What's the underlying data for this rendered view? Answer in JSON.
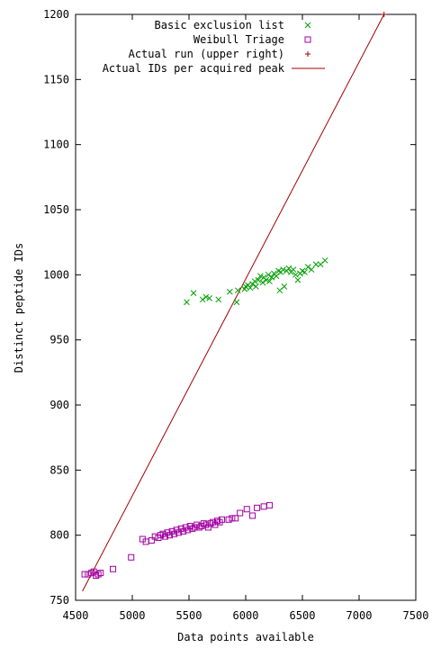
{
  "chart_data": {
    "type": "scatter",
    "xlabel": "Data points available",
    "ylabel": "Distinct peptide IDs",
    "xlim": [
      4500,
      7500
    ],
    "ylim": [
      750,
      1200
    ],
    "xticks": [
      4500,
      5000,
      5500,
      6000,
      6500,
      7000,
      7500
    ],
    "yticks": [
      750,
      800,
      850,
      900,
      950,
      1000,
      1050,
      1100,
      1150,
      1200
    ],
    "grid": false,
    "legend_position": "top-right",
    "series": [
      {
        "name": "Basic exclusion list",
        "marker": "x",
        "color": "#00a000",
        "points": [
          [
            5480,
            979
          ],
          [
            5540,
            986
          ],
          [
            5620,
            981
          ],
          [
            5650,
            983
          ],
          [
            5680,
            982
          ],
          [
            5760,
            981
          ],
          [
            5860,
            987
          ],
          [
            5920,
            979
          ],
          [
            5930,
            988
          ],
          [
            5990,
            989
          ],
          [
            6000,
            991
          ],
          [
            6020,
            992
          ],
          [
            6040,
            990
          ],
          [
            6060,
            993
          ],
          [
            6080,
            995
          ],
          [
            6090,
            991
          ],
          [
            6110,
            996
          ],
          [
            6130,
            999
          ],
          [
            6150,
            994
          ],
          [
            6160,
            998
          ],
          [
            6180,
            996
          ],
          [
            6200,
            1000
          ],
          [
            6210,
            995
          ],
          [
            6230,
            998
          ],
          [
            6250,
            1001
          ],
          [
            6270,
            999
          ],
          [
            6290,
            1003
          ],
          [
            6300,
            988
          ],
          [
            6310,
            1002
          ],
          [
            6330,
            1004
          ],
          [
            6340,
            991
          ],
          [
            6360,
            1003
          ],
          [
            6380,
            1005
          ],
          [
            6400,
            1002
          ],
          [
            6420,
            1004
          ],
          [
            6440,
            1000
          ],
          [
            6460,
            996
          ],
          [
            6480,
            1001
          ],
          [
            6500,
            1003
          ],
          [
            6520,
            1002
          ],
          [
            6550,
            1006
          ],
          [
            6580,
            1004
          ],
          [
            6620,
            1008
          ],
          [
            6660,
            1008
          ],
          [
            6700,
            1011
          ]
        ]
      },
      {
        "name": "Weibull Triage",
        "marker": "square",
        "color": "#a000a0",
        "points": [
          [
            4580,
            770
          ],
          [
            4610,
            770
          ],
          [
            4640,
            771
          ],
          [
            4660,
            772
          ],
          [
            4680,
            769
          ],
          [
            4700,
            770
          ],
          [
            4720,
            771
          ],
          [
            4830,
            774
          ],
          [
            4990,
            783
          ],
          [
            5090,
            797
          ],
          [
            5120,
            795
          ],
          [
            5170,
            796
          ],
          [
            5200,
            799
          ],
          [
            5230,
            798
          ],
          [
            5250,
            800
          ],
          [
            5270,
            801
          ],
          [
            5290,
            799
          ],
          [
            5310,
            802
          ],
          [
            5330,
            800
          ],
          [
            5350,
            803
          ],
          [
            5370,
            801
          ],
          [
            5390,
            804
          ],
          [
            5410,
            802
          ],
          [
            5430,
            805
          ],
          [
            5450,
            803
          ],
          [
            5470,
            806
          ],
          [
            5490,
            804
          ],
          [
            5510,
            807
          ],
          [
            5530,
            805
          ],
          [
            5550,
            806
          ],
          [
            5570,
            808
          ],
          [
            5590,
            806
          ],
          [
            5610,
            807
          ],
          [
            5630,
            809
          ],
          [
            5650,
            808
          ],
          [
            5670,
            806
          ],
          [
            5690,
            809
          ],
          [
            5710,
            810
          ],
          [
            5730,
            808
          ],
          [
            5750,
            811
          ],
          [
            5770,
            810
          ],
          [
            5790,
            812
          ],
          [
            5850,
            812
          ],
          [
            5880,
            813
          ],
          [
            5910,
            813
          ],
          [
            5950,
            817
          ],
          [
            6010,
            820
          ],
          [
            6060,
            815
          ],
          [
            6100,
            821
          ],
          [
            6160,
            822
          ],
          [
            6210,
            823
          ]
        ]
      },
      {
        "name": "Actual run (upper right)",
        "marker": "plus",
        "color": "#a00000",
        "points": [
          [
            7220,
            1200
          ]
        ]
      },
      {
        "name": "Actual IDs per acquired peak",
        "marker": "line",
        "color": "#a00000",
        "points": [
          [
            4560,
            757
          ],
          [
            7220,
            1200
          ]
        ]
      }
    ]
  }
}
